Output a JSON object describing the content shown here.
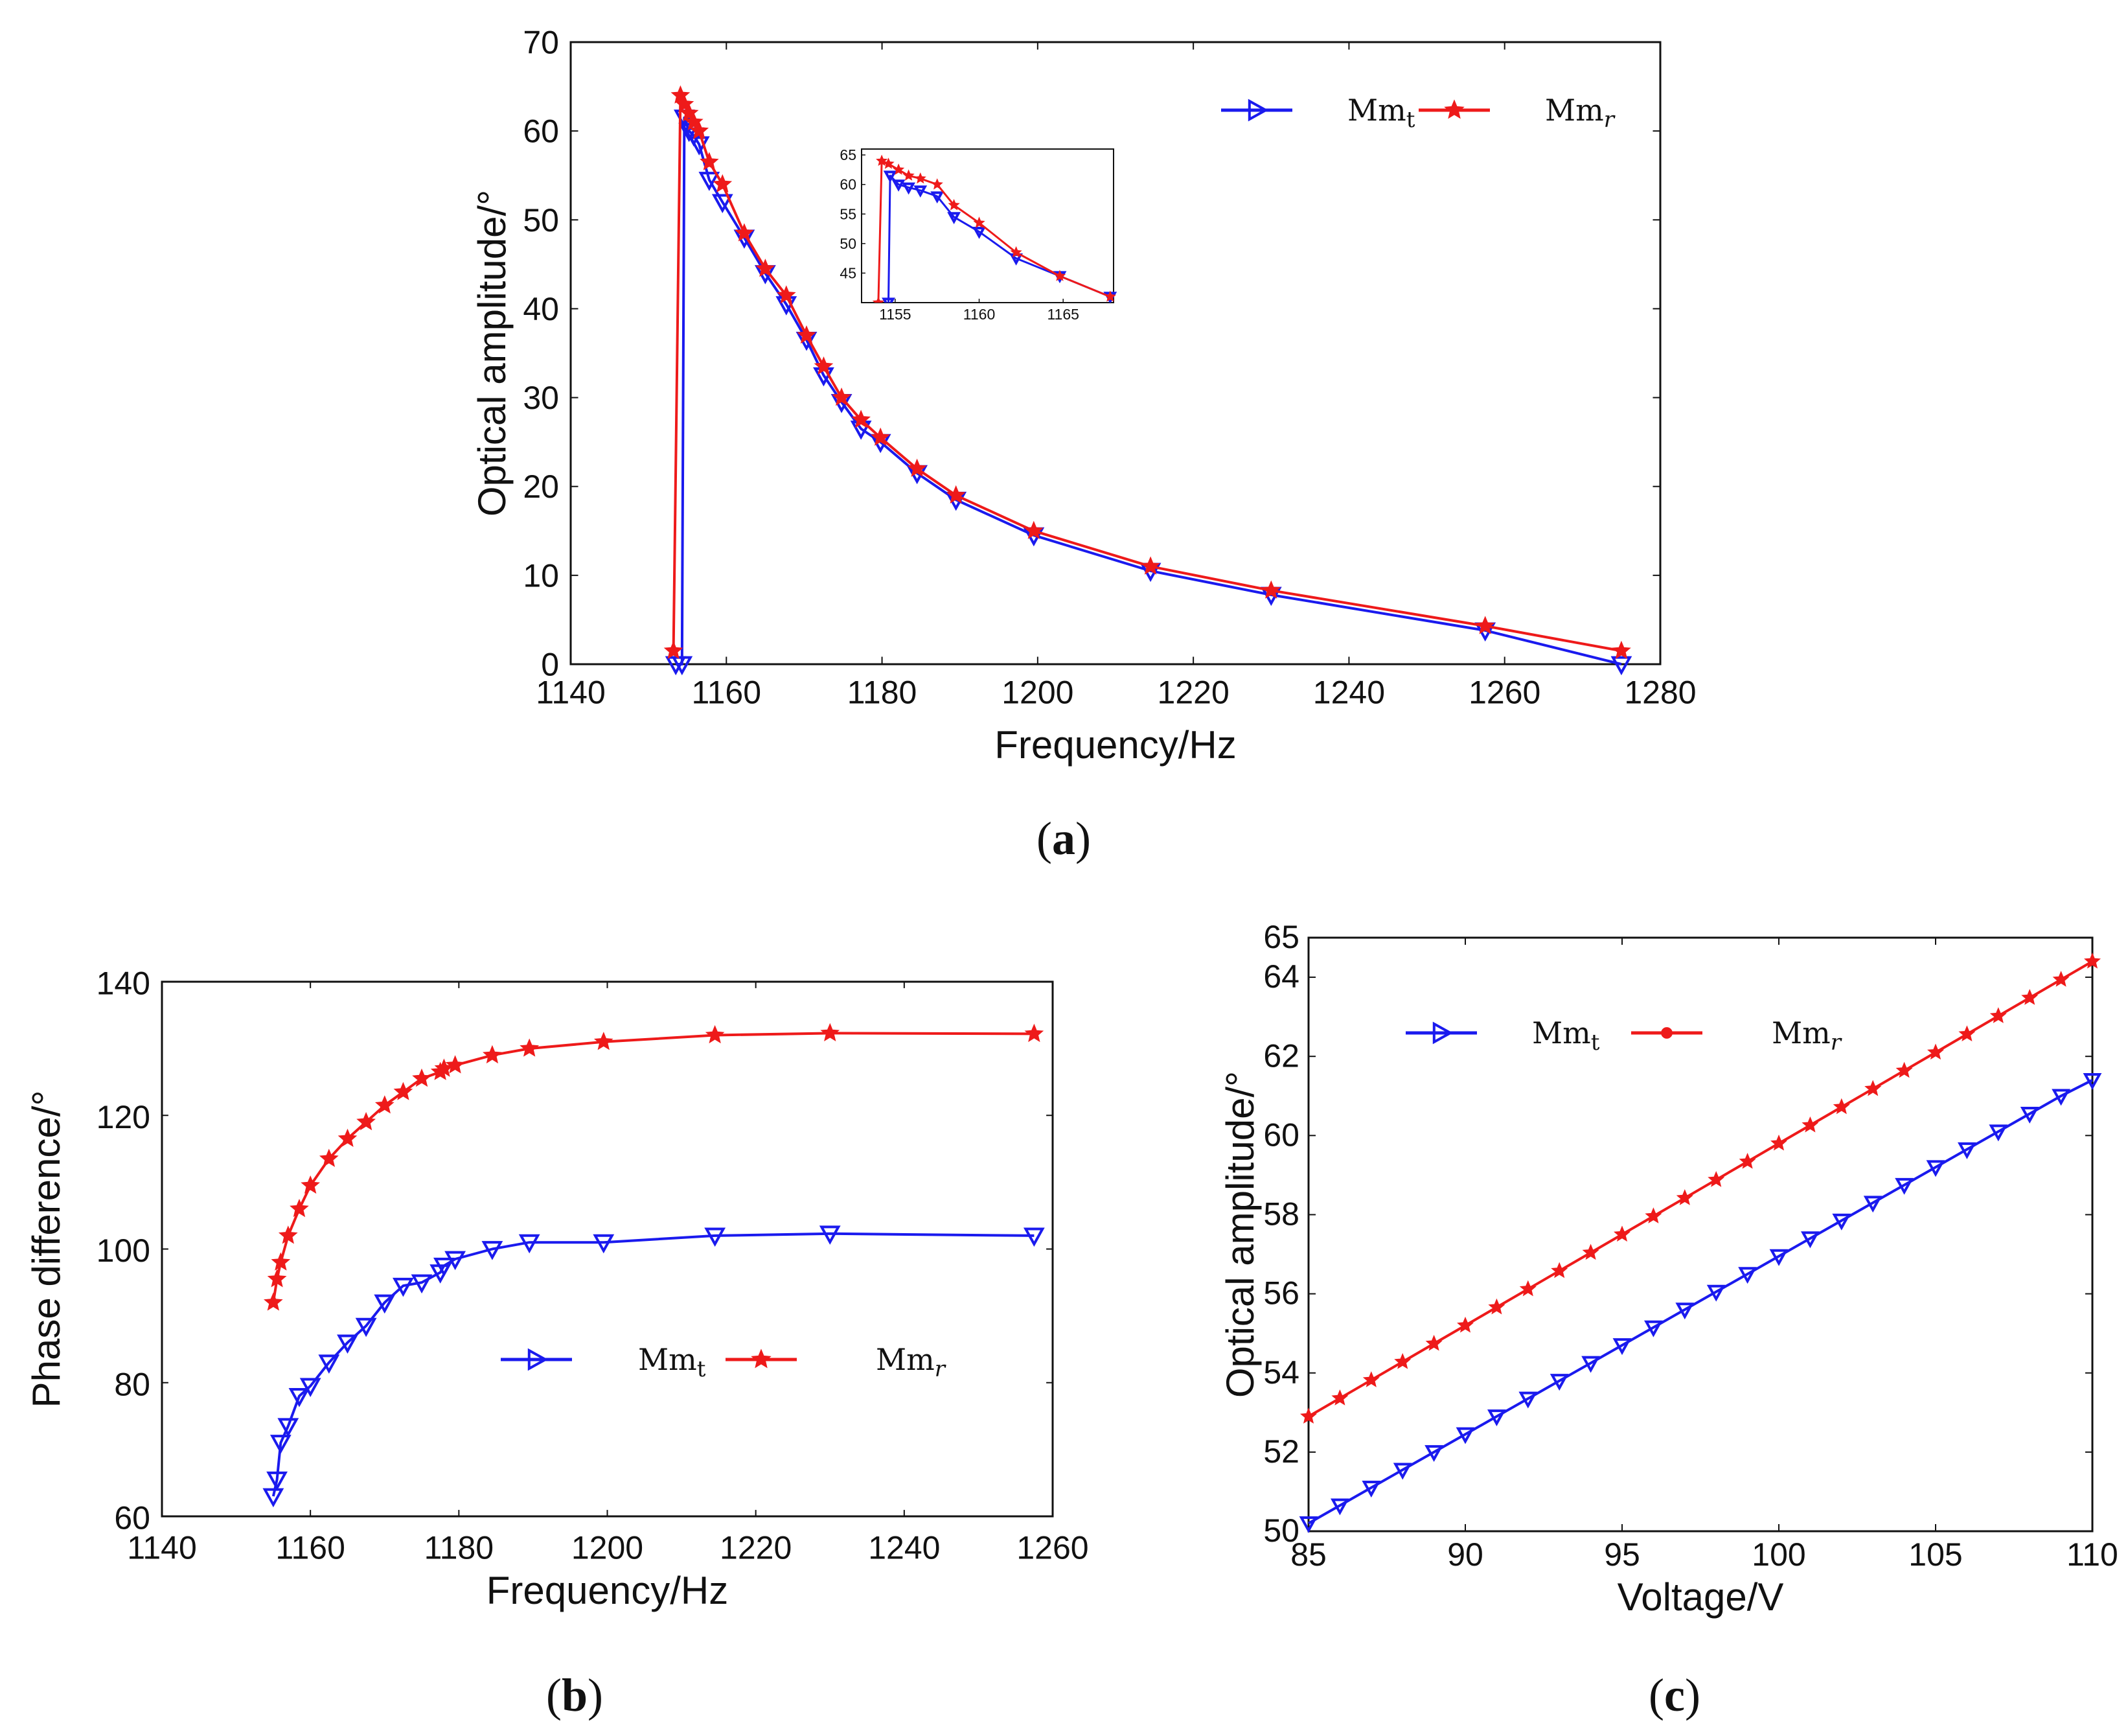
{
  "colors": {
    "mmt": "#1a1aee",
    "mmr": "#ee1a1a",
    "axis": "#111111"
  },
  "chart_data": [
    {
      "id": "a",
      "type": "line",
      "caption": {
        "open": "(",
        "letter": "a",
        "close": ")"
      },
      "xlabel": "Frequency/Hz",
      "ylabel": "Optical amplitude/°",
      "xlim": [
        1140,
        1280
      ],
      "ylim": [
        0,
        70
      ],
      "xticks": [
        1140,
        1160,
        1180,
        1200,
        1220,
        1240,
        1260,
        1280
      ],
      "yticks": [
        0,
        10,
        20,
        30,
        40,
        50,
        60,
        70
      ],
      "legend": {
        "position": "top-right",
        "items": [
          {
            "base": "Mm",
            "sub": "t",
            "marker": "triangle-right",
            "series": "mmt"
          },
          {
            "base": "Mm",
            "sub": "r",
            "marker": "star",
            "series": "mmr"
          }
        ]
      },
      "series": [
        {
          "name": "Mm_t",
          "key": "mmt",
          "marker": "triangle-down",
          "x": [
            1153.5,
            1154.3,
            1154.6,
            1155.2,
            1155.8,
            1156.5,
            1157.8,
            1159.5,
            1162.3,
            1165.0,
            1167.7,
            1170.3,
            1172.5,
            1174.8,
            1177.3,
            1179.8,
            1184.5,
            1189.5,
            1199.5,
            1214.5,
            1230.0,
            1257.5,
            1275.0
          ],
          "y": [
            0,
            0,
            61.5,
            60.0,
            59.5,
            58.5,
            54.5,
            52.0,
            48.0,
            44.0,
            40.5,
            36.5,
            32.5,
            29.5,
            26.5,
            25.0,
            21.5,
            18.5,
            14.5,
            10.5,
            7.8,
            3.8,
            0
          ]
        },
        {
          "name": "Mm_r",
          "key": "mmr",
          "marker": "star",
          "x": [
            1153.2,
            1154.1,
            1154.6,
            1155.2,
            1155.8,
            1156.5,
            1157.8,
            1159.5,
            1162.3,
            1165.0,
            1167.7,
            1170.3,
            1172.5,
            1174.8,
            1177.3,
            1179.8,
            1184.5,
            1189.5,
            1199.5,
            1214.5,
            1230.0,
            1257.5,
            1275.0
          ],
          "y": [
            1.5,
            64.0,
            63.0,
            62.0,
            61.0,
            60.0,
            56.5,
            54.0,
            48.5,
            44.5,
            41.5,
            37.0,
            33.5,
            30.0,
            27.5,
            25.5,
            22.0,
            19.0,
            15.0,
            11.0,
            8.3,
            4.3,
            1.5
          ]
        }
      ],
      "inset": {
        "xlim": [
          1153,
          1168
        ],
        "ylim": [
          40,
          66
        ],
        "xticks": [
          1155,
          1160,
          1165
        ],
        "yticks": [
          45,
          50,
          55,
          60,
          65
        ],
        "series": [
          {
            "key": "mmt",
            "marker": "triangle-down",
            "x": [
              1154.6,
              1154.7,
              1155.2,
              1155.8,
              1156.5,
              1157.5,
              1158.5,
              1160.0,
              1162.2,
              1164.8,
              1167.8
            ],
            "y": [
              40,
              61.5,
              60.0,
              59.5,
              59.0,
              58.0,
              54.5,
              52.0,
              47.5,
              44.5,
              41.0
            ]
          },
          {
            "key": "mmr",
            "marker": "star",
            "x": [
              1154.0,
              1154.2,
              1154.6,
              1155.2,
              1155.8,
              1156.5,
              1157.5,
              1158.5,
              1160.0,
              1162.2,
              1164.8,
              1167.8
            ],
            "y": [
              40,
              64.0,
              63.5,
              62.5,
              61.5,
              61.0,
              60.0,
              56.5,
              53.5,
              48.5,
              44.5,
              41.0
            ]
          }
        ]
      }
    },
    {
      "id": "b",
      "type": "line",
      "caption": {
        "open": "(",
        "letter": "b",
        "close": ")"
      },
      "xlabel": "Frequency/Hz",
      "ylabel": "Phase difference/°",
      "xlim": [
        1140,
        1260
      ],
      "ylim": [
        60,
        140
      ],
      "xticks": [
        1140,
        1160,
        1180,
        1200,
        1220,
        1240,
        1260
      ],
      "yticks": [
        60,
        80,
        100,
        120,
        140
      ],
      "legend": {
        "position": "center-right",
        "items": [
          {
            "base": "Mm",
            "sub": "t",
            "marker": "triangle-right",
            "series": "mmt"
          },
          {
            "base": "Mm",
            "sub": "r",
            "marker": "star",
            "series": "mmr"
          }
        ]
      },
      "series": [
        {
          "name": "Mm_t",
          "key": "mmt",
          "marker": "triangle-down",
          "x": [
            1155.0,
            1155.5,
            1156.0,
            1157.0,
            1158.5,
            1160.0,
            1162.5,
            1165.0,
            1167.5,
            1170.0,
            1172.5,
            1175.0,
            1177.5,
            1178.0,
            1179.5,
            1184.5,
            1189.5,
            1199.5,
            1214.5,
            1230.0,
            1257.5
          ],
          "y": [
            63,
            65.5,
            71,
            73.5,
            78,
            79.5,
            83,
            86,
            88.5,
            92,
            94.5,
            95,
            96.5,
            97.5,
            98.5,
            100,
            101,
            101,
            102,
            102.3,
            102
          ]
        },
        {
          "name": "Mm_r",
          "key": "mmr",
          "marker": "star",
          "x": [
            1155.0,
            1155.5,
            1156.0,
            1157.0,
            1158.5,
            1160.0,
            1162.5,
            1165.0,
            1167.5,
            1170.0,
            1172.5,
            1175.0,
            1177.5,
            1178.0,
            1179.5,
            1184.5,
            1189.5,
            1199.5,
            1214.5,
            1230.0,
            1257.5
          ],
          "y": [
            92,
            95.5,
            98,
            102,
            106,
            109.5,
            113.5,
            116.5,
            119,
            121.5,
            123.5,
            125.5,
            126.5,
            127,
            127.5,
            129,
            130,
            131,
            132,
            132.3,
            132.2
          ]
        }
      ]
    },
    {
      "id": "c",
      "type": "line",
      "caption": {
        "open": "(",
        "letter": "c",
        "close": ")"
      },
      "xlabel": "Voltage/V",
      "ylabel": "Optical amplitude/°",
      "xlim": [
        85,
        110
      ],
      "ylim": [
        50,
        65
      ],
      "xticks": [
        85,
        90,
        95,
        100,
        105,
        110
      ],
      "yticks": [
        50,
        52,
        54,
        56,
        58,
        60,
        62,
        64,
        65
      ],
      "legend": {
        "position": "top-left",
        "items": [
          {
            "base": "Mm",
            "sub": "t",
            "marker": "triangle-right",
            "series": "mmt"
          },
          {
            "base": "Mm",
            "sub": "r",
            "marker": "dot",
            "series": "mmr"
          }
        ]
      },
      "series": [
        {
          "name": "Mm_t",
          "key": "mmt",
          "marker": "triangle-down",
          "x": [
            85,
            86,
            87,
            88,
            89,
            90,
            91,
            92,
            93,
            94,
            95,
            96,
            97,
            98,
            99,
            100,
            101,
            102,
            103,
            104,
            105,
            106,
            107,
            108,
            109,
            110
          ],
          "y": [
            50.2,
            50.65,
            51.1,
            51.55,
            52.0,
            52.45,
            52.9,
            53.35,
            53.8,
            54.25,
            54.7,
            55.15,
            55.6,
            56.05,
            56.5,
            56.95,
            57.4,
            57.85,
            58.3,
            58.75,
            59.2,
            59.65,
            60.1,
            60.55,
            61.0,
            61.4
          ]
        },
        {
          "name": "Mm_r",
          "key": "mmr",
          "marker": "star",
          "x": [
            85,
            86,
            87,
            88,
            89,
            90,
            91,
            92,
            93,
            94,
            95,
            96,
            97,
            98,
            99,
            100,
            101,
            102,
            103,
            104,
            105,
            106,
            107,
            108,
            109,
            110
          ],
          "y": [
            52.9,
            53.36,
            53.82,
            54.28,
            54.74,
            55.2,
            55.66,
            56.12,
            56.58,
            57.04,
            57.5,
            57.96,
            58.42,
            58.88,
            59.34,
            59.8,
            60.26,
            60.72,
            61.18,
            61.64,
            62.1,
            62.56,
            63.02,
            63.48,
            63.94,
            64.4
          ]
        }
      ]
    }
  ]
}
